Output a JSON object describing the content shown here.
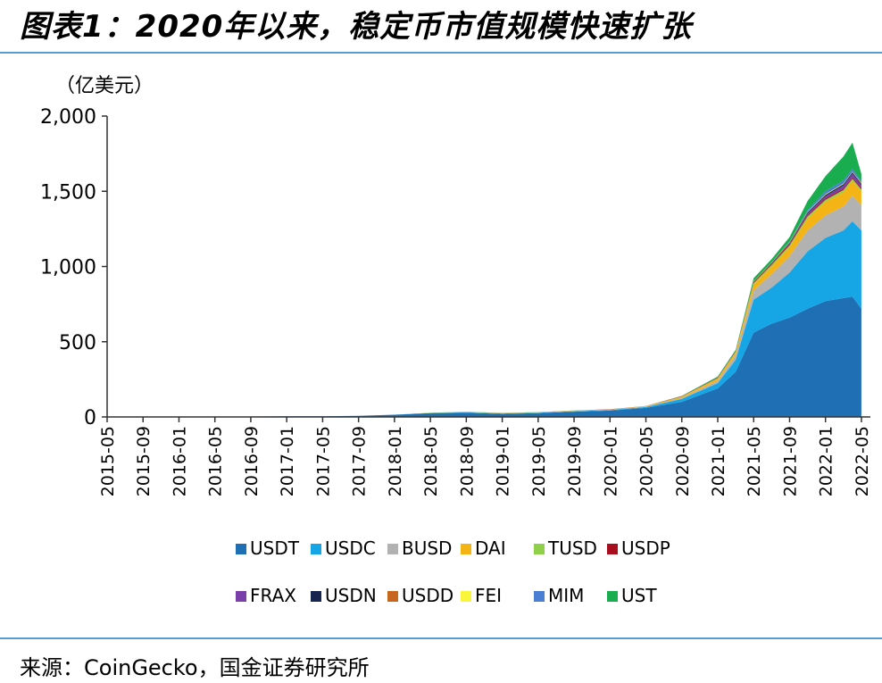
{
  "title": "图表1：2020年以来，稳定币市值规模快速扩张",
  "source": "来源：CoinGecko，国金证券研究所",
  "chart_data": {
    "type": "area",
    "stacked": true,
    "unit_label": "（亿美元）",
    "ylim": [
      0,
      2000
    ],
    "yticks": [
      0,
      500,
      1000,
      1500,
      2000
    ],
    "ytick_labels": [
      "0",
      "500",
      "1,000",
      "1,500",
      "2,000"
    ],
    "xtick_labels": [
      "2015-05",
      "2015-09",
      "2016-01",
      "2016-05",
      "2016-09",
      "2017-01",
      "2017-05",
      "2017-09",
      "2018-01",
      "2018-05",
      "2018-09",
      "2019-01",
      "2019-05",
      "2019-09",
      "2020-01",
      "2020-05",
      "2020-09",
      "2021-01",
      "2021-05",
      "2021-09",
      "2022-01",
      "2022-05"
    ],
    "x": [
      "2015-05",
      "2015-09",
      "2016-01",
      "2016-05",
      "2016-09",
      "2017-01",
      "2017-05",
      "2017-09",
      "2018-01",
      "2018-05",
      "2018-09",
      "2019-01",
      "2019-05",
      "2019-09",
      "2020-01",
      "2020-05",
      "2020-09",
      "2021-01",
      "2021-03",
      "2021-05",
      "2021-07",
      "2021-09",
      "2021-11",
      "2022-01",
      "2022-03",
      "2022-04",
      "2022-05"
    ],
    "legend_position": "bottom",
    "series": [
      {
        "name": "USDT",
        "color": "#1f6fb5",
        "values": [
          2,
          2,
          2,
          2,
          3,
          4,
          5,
          8,
          15,
          25,
          28,
          20,
          25,
          35,
          42,
          60,
          100,
          190,
          300,
          560,
          620,
          660,
          720,
          770,
          790,
          800,
          720
        ]
      },
      {
        "name": "USDC",
        "color": "#16a6e6",
        "values": [
          0,
          0,
          0,
          0,
          0,
          0,
          0,
          0,
          0,
          1,
          2,
          3,
          3,
          3,
          4,
          6,
          20,
          35,
          80,
          220,
          240,
          300,
          380,
          420,
          450,
          500,
          520
        ]
      },
      {
        "name": "BUSD",
        "color": "#b2b2b2",
        "values": [
          0,
          0,
          0,
          0,
          0,
          0,
          0,
          0,
          0,
          0,
          0,
          0,
          0,
          1,
          2,
          3,
          6,
          15,
          30,
          60,
          90,
          110,
          140,
          150,
          160,
          170,
          170
        ]
      },
      {
        "name": "DAI",
        "color": "#f5b416",
        "values": [
          0,
          0,
          0,
          0,
          0,
          0,
          0,
          0,
          0,
          0,
          0,
          1,
          1,
          1,
          1,
          2,
          8,
          15,
          20,
          40,
          50,
          60,
          80,
          90,
          95,
          100,
          90
        ]
      },
      {
        "name": "TUSD",
        "color": "#8fcf4a",
        "values": [
          0,
          0,
          0,
          0,
          0,
          0,
          0,
          0,
          0,
          2,
          3,
          2,
          2,
          2,
          1,
          1,
          2,
          3,
          4,
          10,
          12,
          12,
          14,
          14,
          14,
          14,
          12
        ]
      },
      {
        "name": "USDP",
        "color": "#a90e1e",
        "values": [
          0,
          0,
          0,
          0,
          0,
          0,
          0,
          0,
          0,
          0,
          1,
          1,
          1,
          1,
          1,
          1,
          2,
          3,
          3,
          6,
          7,
          8,
          9,
          9,
          9,
          9,
          9
        ]
      },
      {
        "name": "FRAX",
        "color": "#7a3fa8",
        "values": [
          0,
          0,
          0,
          0,
          0,
          0,
          0,
          0,
          0,
          0,
          0,
          0,
          0,
          0,
          0,
          0,
          0,
          1,
          1,
          2,
          3,
          5,
          10,
          15,
          20,
          25,
          20
        ]
      },
      {
        "name": "USDN",
        "color": "#16254f",
        "values": [
          0,
          0,
          0,
          0,
          0,
          0,
          0,
          0,
          0,
          0,
          0,
          0,
          0,
          0,
          0,
          0,
          0,
          1,
          1,
          2,
          3,
          5,
          7,
          8,
          9,
          9,
          8
        ]
      },
      {
        "name": "USDD",
        "color": "#c7671f",
        "values": [
          0,
          0,
          0,
          0,
          0,
          0,
          0,
          0,
          0,
          0,
          0,
          0,
          0,
          0,
          0,
          0,
          0,
          0,
          0,
          0,
          0,
          0,
          0,
          0,
          0,
          0,
          4
        ]
      },
      {
        "name": "FEI",
        "color": "#f8f53a",
        "values": [
          0,
          0,
          0,
          0,
          0,
          0,
          0,
          0,
          0,
          0,
          0,
          0,
          0,
          0,
          0,
          0,
          0,
          0,
          0,
          2,
          3,
          4,
          5,
          5,
          5,
          4,
          3
        ]
      },
      {
        "name": "MIM",
        "color": "#4a7fd4",
        "values": [
          0,
          0,
          0,
          0,
          0,
          0,
          0,
          0,
          0,
          0,
          0,
          0,
          0,
          0,
          0,
          0,
          0,
          0,
          0,
          0,
          0,
          2,
          10,
          20,
          20,
          18,
          10
        ]
      },
      {
        "name": "UST",
        "color": "#1aad4f",
        "values": [
          0,
          0,
          0,
          0,
          0,
          0,
          0,
          0,
          0,
          0,
          0,
          0,
          0,
          0,
          0,
          0,
          2,
          5,
          8,
          20,
          22,
          30,
          60,
          100,
          160,
          175,
          50
        ]
      }
    ]
  }
}
